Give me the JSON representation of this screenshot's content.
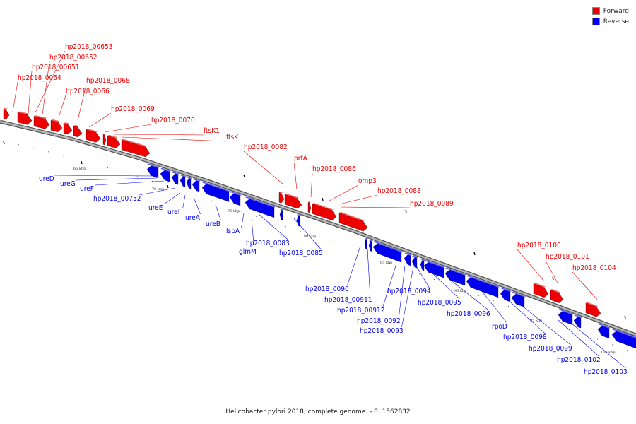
{
  "caption": "Helicobacter pylori 2018, complete genome. - 0..1562832",
  "legend": [
    {
      "label": "Forward",
      "color": "#ee0000"
    },
    {
      "label": "Reverse",
      "color": "#0000ee"
    }
  ],
  "colors": {
    "forward": "#ee0000",
    "reverse": "#0000ee",
    "backbone": "#8a8a8a"
  },
  "tick_labels": [
    "65 kbp",
    "70 kbp",
    "75 kbp",
    "80 kbp",
    "85 kbp",
    "90 kbp",
    "95 kbp",
    "100 kbp"
  ],
  "forward_genes": [
    "hp2018_00653",
    "hp2018_00652",
    "hp2018_00651",
    "hp2018_0064",
    "hp2018_0068",
    "hp2018_0066",
    "hp2018_0069",
    "hp2018_0070",
    "ftsK1",
    "ftsK",
    "hp2018_0082",
    "prfA",
    "hp2018_0086",
    "omp3",
    "hp2018_0088",
    "hp2018_0089",
    "hp2018_0100",
    "hp2018_0101",
    "hp2018_0104"
  ],
  "reverse_genes": [
    "ureD",
    "ureG",
    "ureF",
    "hp2018_00752",
    "ureE",
    "ureI",
    "ureA",
    "ureB",
    "lspA",
    "hp2018_0083",
    "glmM",
    "hp2018_0085",
    "hp2018_0090",
    "hp2018_00911",
    "hp2018_00912",
    "hp2018_0092",
    "hp2018_0093",
    "hp2018_0094",
    "hp2018_0095",
    "hp2018_0096",
    "rpoD",
    "hp2018_0098",
    "hp2018_0099",
    "hp2018_0102",
    "hp2018_0103"
  ]
}
